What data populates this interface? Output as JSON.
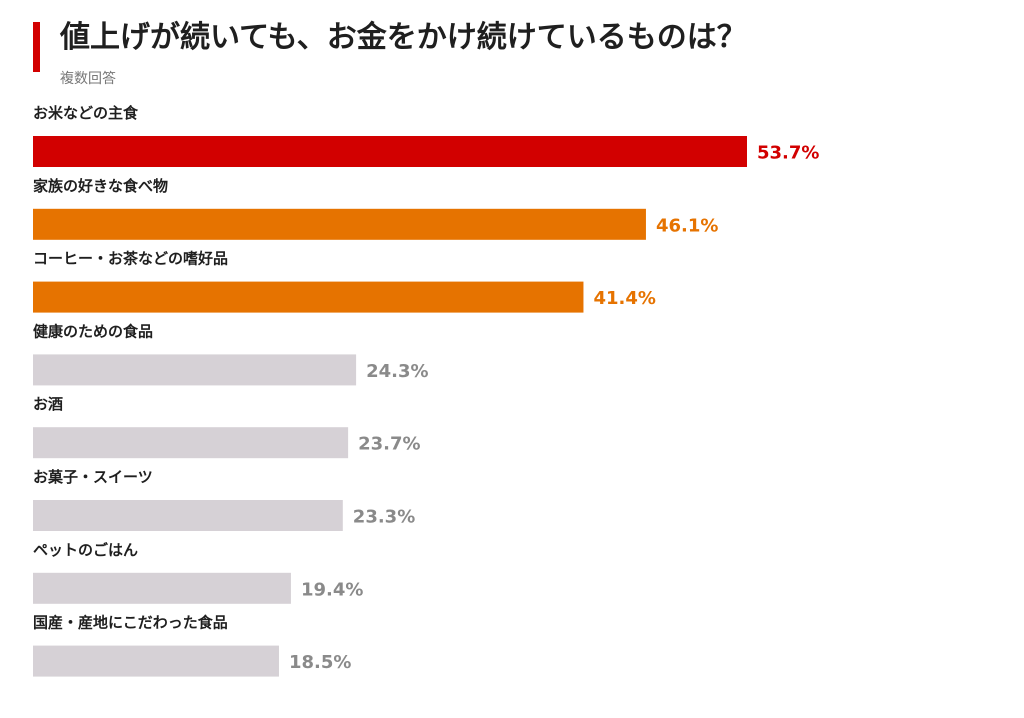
{
  "header": {
    "title": "値上げが続いても、お金をかけ続けているものは？",
    "subtitle": "複数回答"
  },
  "colors": {
    "accent": "#d20000",
    "highlight": "#e67300",
    "neutral": "#d6d1d6",
    "neutral_label": "#8a8a8a"
  },
  "chart_data": {
    "type": "bar",
    "orientation": "horizontal",
    "title": "値上げが続いても、お金をかけ続けているものは？",
    "subtitle": "複数回答",
    "categories": [
      "お米などの主食",
      "家族の好きな食べ物",
      "コーヒー・お茶などの嗜好品",
      "健康のための食品",
      "お酒",
      "お菓子・スイーツ",
      "ペットのごはん",
      "国産・産地にこだわった食品"
    ],
    "values": [
      53.7,
      46.1,
      41.4,
      24.3,
      23.7,
      23.3,
      19.4,
      18.5
    ],
    "value_labels": [
      "53.7%",
      "46.1%",
      "41.4%",
      "24.3%",
      "23.7%",
      "23.3%",
      "19.4%",
      "18.5%"
    ],
    "bar_colors": [
      "#d20000",
      "#e67300",
      "#e67300",
      "#d6d1d6",
      "#d6d1d6",
      "#d6d1d6",
      "#d6d1d6",
      "#d6d1d6"
    ],
    "label_colors": [
      "#d20000",
      "#e67300",
      "#e67300",
      "#8a8a8a",
      "#8a8a8a",
      "#8a8a8a",
      "#8a8a8a",
      "#8a8a8a"
    ],
    "unit": "%",
    "xlabel": "",
    "ylabel": "",
    "grid": false,
    "legend": "none"
  }
}
